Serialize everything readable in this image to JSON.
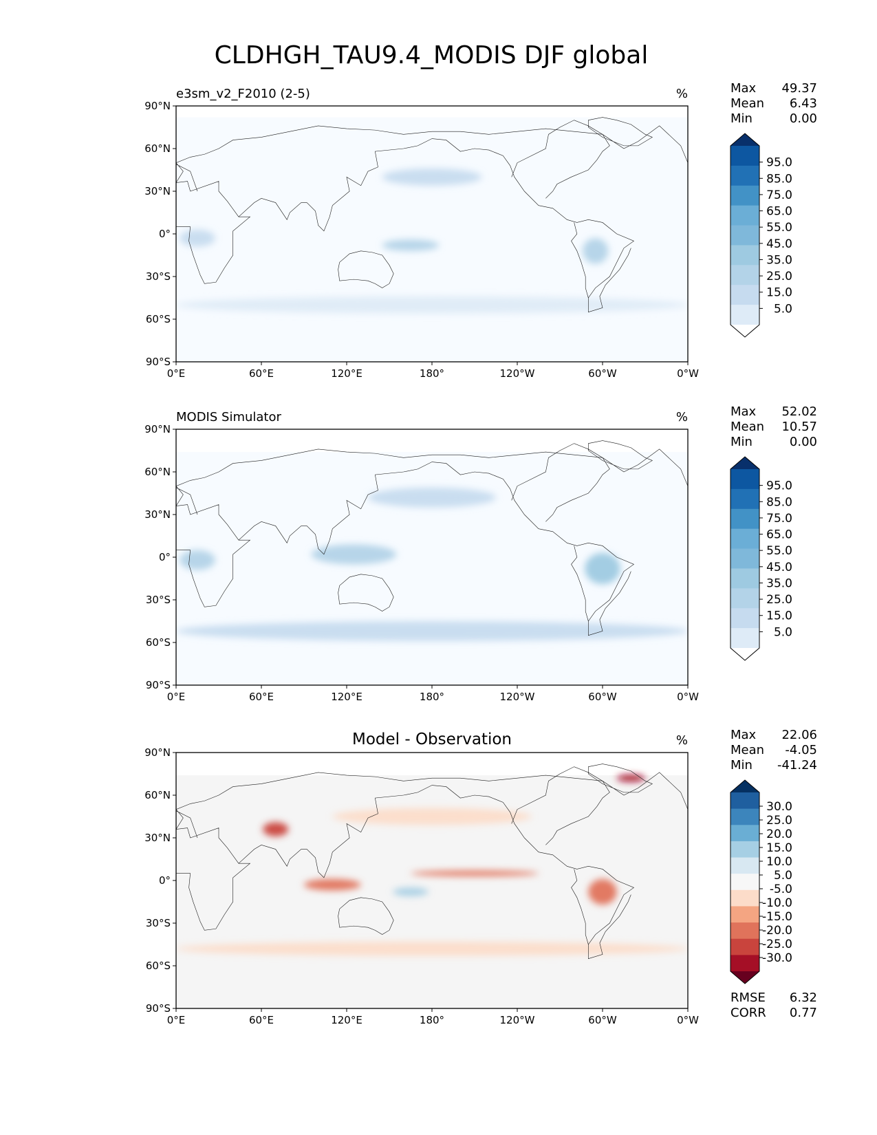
{
  "figure": {
    "title": "CLDHGH_TAU9.4_MODIS DJF global"
  },
  "panels": [
    {
      "id": "test",
      "left_title": "e3sm_v2_F2010 (2-5)",
      "center_title": "",
      "units": "%",
      "stats": [
        {
          "label": "Max",
          "value": "49.37"
        },
        {
          "label": "Mean",
          "value": "6.43"
        },
        {
          "label": "Min",
          "value": "0.00"
        }
      ],
      "colorbar": {
        "colors": [
          "#f7fbff",
          "#deebf7",
          "#c6dbef",
          "#b3d3e8",
          "#9ecae1",
          "#7fb8da",
          "#6baed6",
          "#4292c6",
          "#2171b5",
          "#0d57a1",
          "#08306b"
        ],
        "over_color": "#08306b",
        "under_color": "#ffffff",
        "labels": [
          "95.0",
          "85.0",
          "75.0",
          "65.0",
          "55.0",
          "45.0",
          "35.0",
          "25.0",
          "15.0",
          "5.0"
        ]
      },
      "extra_stats": []
    },
    {
      "id": "reference",
      "left_title": "MODIS Simulator",
      "center_title": "",
      "units": "%",
      "stats": [
        {
          "label": "Max",
          "value": "52.02"
        },
        {
          "label": "Mean",
          "value": "10.57"
        },
        {
          "label": "Min",
          "value": "0.00"
        }
      ],
      "colorbar": {
        "colors": [
          "#f7fbff",
          "#deebf7",
          "#c6dbef",
          "#b3d3e8",
          "#9ecae1",
          "#7fb8da",
          "#6baed6",
          "#4292c6",
          "#2171b5",
          "#0d57a1",
          "#08306b"
        ],
        "over_color": "#08306b",
        "under_color": "#ffffff",
        "labels": [
          "95.0",
          "85.0",
          "75.0",
          "65.0",
          "55.0",
          "45.0",
          "35.0",
          "25.0",
          "15.0",
          "5.0"
        ]
      },
      "extra_stats": []
    },
    {
      "id": "diff",
      "left_title": "",
      "center_title": "Model - Observation",
      "units": "%",
      "stats": [
        {
          "label": "Max",
          "value": "22.06"
        },
        {
          "label": "Mean",
          "value": "-4.05"
        },
        {
          "label": "Min",
          "value": "-41.24"
        }
      ],
      "colorbar": {
        "colors": [
          "#67001f",
          "#a50f26",
          "#c9443d",
          "#e0735b",
          "#f4a582",
          "#fcdcc9",
          "#f7f7f7",
          "#d8e8f2",
          "#a6cfe4",
          "#6aaed4",
          "#3c85bc",
          "#1f5f9f",
          "#053061"
        ],
        "over_color": "#053061",
        "under_color": "#67001f",
        "labels": [
          "30.0",
          "25.0",
          "20.0",
          "15.0",
          "10.0",
          "5.0",
          "-5.0",
          "-10.0",
          "-15.0",
          "-20.0",
          "-25.0",
          "-30.0"
        ]
      },
      "extra_stats": [
        {
          "label": "RMSE",
          "value": "6.32"
        },
        {
          "label": "CORR",
          "value": "0.77"
        }
      ]
    }
  ],
  "axes": {
    "lon_ticks": [
      "0°E",
      "60°E",
      "120°E",
      "180°",
      "120°W",
      "60°W",
      "0°W"
    ],
    "lat_ticks": [
      "90°N",
      "60°N",
      "30°N",
      "0°",
      "30°S",
      "60°S",
      "90°S"
    ]
  },
  "chart_data": [
    {
      "type": "heatmap",
      "title": "e3sm_v2_F2010 (2-5)",
      "units": "%",
      "x_range": [
        0,
        360
      ],
      "y_range": [
        -90,
        90
      ],
      "levels": [
        5,
        15,
        25,
        35,
        45,
        55,
        65,
        75,
        85,
        95
      ],
      "stats": {
        "max": 49.37,
        "mean": 6.43,
        "min": 0.0
      },
      "field_features": [
        {
          "lon": 165,
          "lat": -8,
          "lon_span": 40,
          "lat_span": 8,
          "value": 32
        },
        {
          "lon": 15,
          "lat": -3,
          "lon_span": 25,
          "lat_span": 12,
          "value": 22
        },
        {
          "lon": 295,
          "lat": -12,
          "lon_span": 18,
          "lat_span": 18,
          "value": 30
        },
        {
          "lon": 180,
          "lat": 40,
          "lon_span": 70,
          "lat_span": 12,
          "value": 15
        },
        {
          "lon": 180,
          "lat": -50,
          "lon_span": 360,
          "lat_span": 12,
          "value": 12
        }
      ]
    },
    {
      "type": "heatmap",
      "title": "MODIS Simulator",
      "units": "%",
      "x_range": [
        0,
        360
      ],
      "y_range": [
        -90,
        90
      ],
      "levels": [
        5,
        15,
        25,
        35,
        45,
        55,
        65,
        75,
        85,
        95
      ],
      "stats": {
        "max": 52.02,
        "mean": 10.57,
        "min": 0.0
      },
      "field_features": [
        {
          "lon": 125,
          "lat": 2,
          "lon_span": 60,
          "lat_span": 14,
          "value": 28
        },
        {
          "lon": 300,
          "lat": -8,
          "lon_span": 25,
          "lat_span": 22,
          "value": 38
        },
        {
          "lon": 15,
          "lat": -2,
          "lon_span": 25,
          "lat_span": 14,
          "value": 28
        },
        {
          "lon": 180,
          "lat": 42,
          "lon_span": 90,
          "lat_span": 14,
          "value": 20
        },
        {
          "lon": 180,
          "lat": -52,
          "lon_span": 360,
          "lat_span": 14,
          "value": 20
        }
      ]
    },
    {
      "type": "heatmap",
      "title": "Model - Observation",
      "units": "%",
      "x_range": [
        0,
        360
      ],
      "y_range": [
        -90,
        90
      ],
      "levels": [
        -30,
        -25,
        -20,
        -15,
        -10,
        -5,
        5,
        10,
        15,
        20,
        25,
        30
      ],
      "stats": {
        "max": 22.06,
        "mean": -4.05,
        "min": -41.24,
        "rmse": 6.32,
        "corr": 0.77
      },
      "field_features": [
        {
          "lon": 70,
          "lat": 36,
          "lon_span": 18,
          "lat_span": 10,
          "value": -25
        },
        {
          "lon": 110,
          "lat": -3,
          "lon_span": 40,
          "lat_span": 8,
          "value": -18
        },
        {
          "lon": 210,
          "lat": 5,
          "lon_span": 90,
          "lat_span": 4,
          "value": -18
        },
        {
          "lon": 165,
          "lat": -8,
          "lon_span": 25,
          "lat_span": 6,
          "value": 12
        },
        {
          "lon": 300,
          "lat": -8,
          "lon_span": 20,
          "lat_span": 18,
          "value": -20
        },
        {
          "lon": 320,
          "lat": 72,
          "lon_span": 20,
          "lat_span": 5,
          "value": -30
        },
        {
          "lon": 180,
          "lat": -48,
          "lon_span": 360,
          "lat_span": 10,
          "value": -10
        },
        {
          "lon": 180,
          "lat": 45,
          "lon_span": 140,
          "lat_span": 12,
          "value": -10
        }
      ]
    }
  ]
}
